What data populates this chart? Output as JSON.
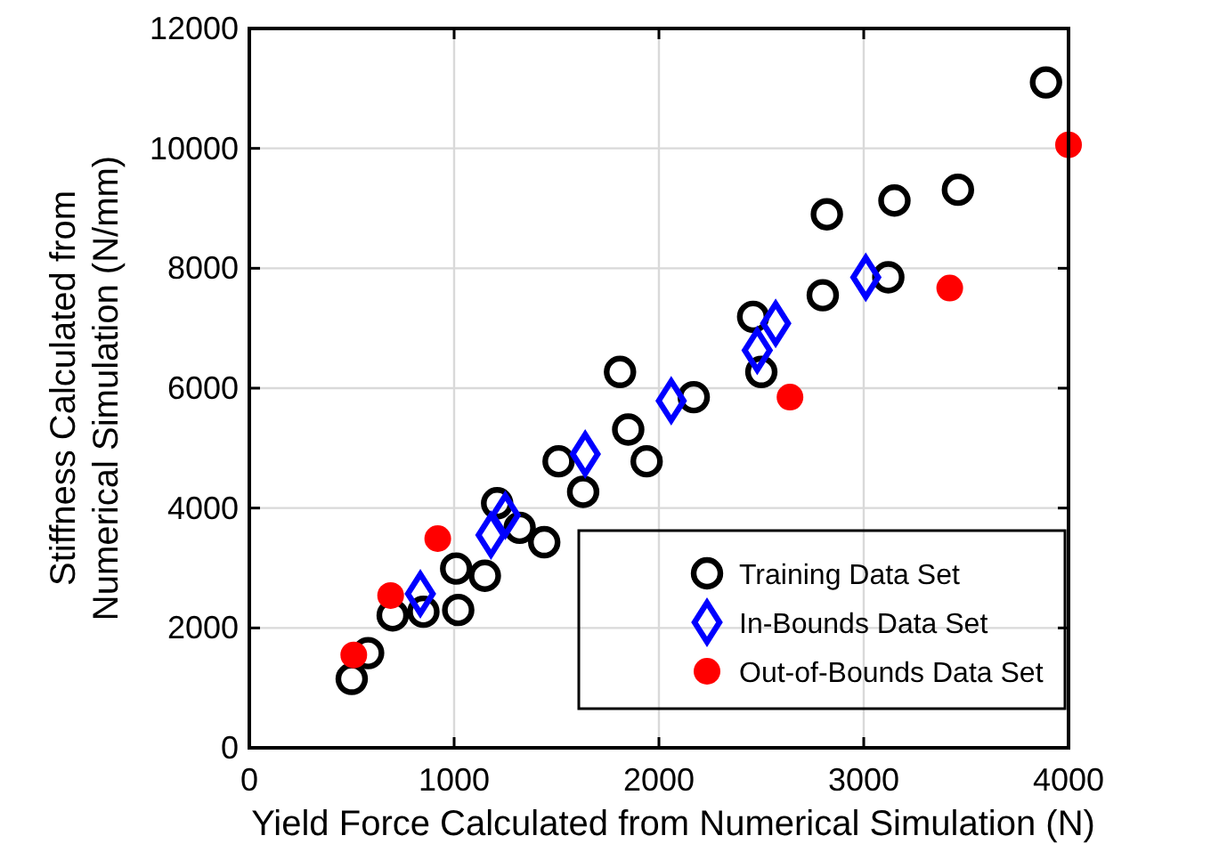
{
  "chart_data": {
    "type": "scatter",
    "xlabel": "Yield Force Calculated from Numerical Simulation (N)",
    "ylabel": "Stiffness Calculated from\nNumerical Simulation (N/mm)",
    "xlim": [
      0,
      4000
    ],
    "ylim": [
      0,
      12000
    ],
    "xticks": [
      0,
      1000,
      2000,
      3000,
      4000
    ],
    "yticks": [
      0,
      2000,
      4000,
      6000,
      8000,
      10000,
      12000
    ],
    "grid": true,
    "legend": "bottom right",
    "series": [
      {
        "name": "Training Data Set",
        "color": "#000000",
        "marker": "circle-open",
        "x": [
          500,
          580,
          700,
          850,
          1020,
          1010,
          1150,
          1210,
          1320,
          1440,
          1510,
          1630,
          1810,
          1850,
          1940,
          2170,
          2500,
          2460,
          2800,
          2820,
          3120,
          3150,
          3460,
          3890
        ],
        "values": [
          1150,
          1580,
          2210,
          2270,
          2300,
          2990,
          2870,
          4080,
          3670,
          3430,
          4780,
          4270,
          6270,
          5310,
          4780,
          5850,
          6270,
          7190,
          7550,
          8900,
          7850,
          9130,
          9310,
          11100
        ]
      },
      {
        "name": "In-Bounds Data Set",
        "color": "#0000ff",
        "marker": "diamond-open",
        "x": [
          835,
          1180,
          1250,
          1640,
          2060,
          2480,
          2570,
          3010
        ],
        "values": [
          2570,
          3550,
          3880,
          4900,
          5790,
          6630,
          7080,
          7850
        ]
      },
      {
        "name": "Out-of-Bounds Data Set",
        "color": "#ff0000",
        "marker": "circle",
        "x": [
          510,
          690,
          920,
          2640,
          3420,
          4000
        ],
        "values": [
          1550,
          2540,
          3490,
          5850,
          7670,
          10060
        ]
      }
    ]
  }
}
